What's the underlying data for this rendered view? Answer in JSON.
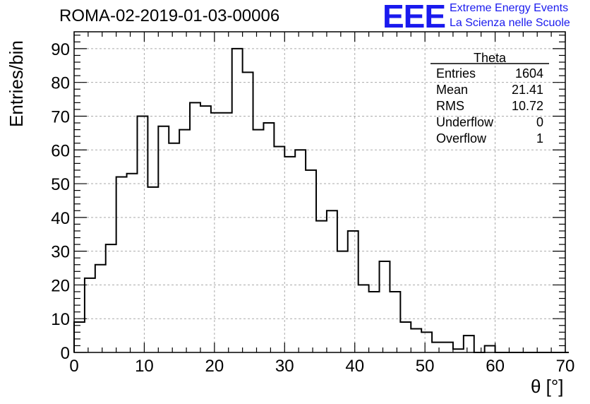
{
  "header": {
    "title": "ROMA-02-2019-01-03-00006",
    "logo_text": "EEE",
    "logo_line1": "Extreme Energy Events",
    "logo_line2": "La Scienza nelle Scuole",
    "brand_color": "#1a1aee"
  },
  "stats": {
    "title": "Theta",
    "rows": [
      {
        "label": "Entries",
        "value": "1604"
      },
      {
        "label": "Mean",
        "value": "21.41"
      },
      {
        "label": "RMS",
        "value": "10.72"
      },
      {
        "label": "Underflow",
        "value": "0"
      },
      {
        "label": "Overflow",
        "value": "1"
      }
    ]
  },
  "chart_data": {
    "type": "bar",
    "style": "step-histogram",
    "xlabel": "θ [°]",
    "ylabel": "Entries/bin",
    "xlim": [
      0,
      70
    ],
    "ylim": [
      0,
      95
    ],
    "grid": true,
    "bin_width": 1.5,
    "x_start": 0,
    "x_ticks": [
      0,
      10,
      20,
      30,
      40,
      50,
      60,
      70
    ],
    "y_ticks": [
      0,
      10,
      20,
      30,
      40,
      50,
      60,
      70,
      80,
      90
    ],
    "values": [
      9,
      22,
      26,
      32,
      52,
      53,
      70,
      49,
      67,
      62,
      66,
      74,
      73,
      71,
      71,
      90,
      83,
      66,
      68,
      61,
      58,
      60,
      54,
      39,
      42,
      30,
      36,
      20,
      18,
      27,
      18,
      9,
      7,
      6,
      3,
      3,
      1,
      5,
      0,
      2,
      0,
      0,
      0,
      0,
      0,
      0,
      0
    ]
  }
}
